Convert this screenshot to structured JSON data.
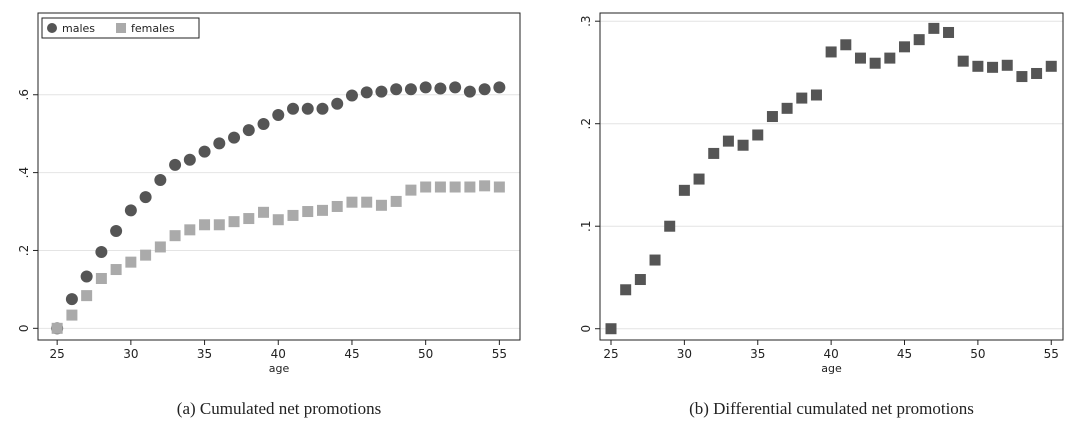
{
  "chart_data": [
    {
      "type": "scatter",
      "caption": "(a) Cumulated net promotions",
      "xlabel": "age",
      "x": [
        25,
        26,
        27,
        28,
        29,
        30,
        31,
        32,
        33,
        34,
        35,
        36,
        37,
        38,
        39,
        40,
        41,
        42,
        43,
        44,
        45,
        46,
        47,
        48,
        49,
        50,
        51,
        52,
        53,
        54,
        55
      ],
      "series": [
        {
          "name": "males",
          "color": "#555555",
          "marker": "circle",
          "values": [
            0,
            0.075,
            0.133,
            0.196,
            0.25,
            0.303,
            0.337,
            0.381,
            0.42,
            0.433,
            0.454,
            0.475,
            0.49,
            0.509,
            0.525,
            0.548,
            0.564,
            0.564,
            0.564,
            0.577,
            0.598,
            0.606,
            0.608,
            0.614,
            0.614,
            0.619,
            0.616,
            0.619,
            0.608,
            0.614,
            0.619
          ]
        },
        {
          "name": "females",
          "color": "#aaaaaa",
          "marker": "square",
          "values": [
            0,
            0.034,
            0.084,
            0.128,
            0.151,
            0.17,
            0.188,
            0.209,
            0.238,
            0.253,
            0.266,
            0.266,
            0.274,
            0.282,
            0.298,
            0.279,
            0.29,
            0.3,
            0.303,
            0.313,
            0.324,
            0.324,
            0.316,
            0.326,
            0.355,
            0.363,
            0.363,
            0.363,
            0.363,
            0.366,
            0.363
          ]
        }
      ],
      "xlim": [
        23.7,
        56.4
      ],
      "xticks": [
        25,
        30,
        35,
        40,
        45,
        50,
        55
      ],
      "ylim": [
        -0.03,
        0.81
      ],
      "yticks": [
        0,
        {
          "value": 0.2,
          "label": ".2"
        },
        {
          "value": 0.4,
          "label": ".4"
        },
        {
          "value": 0.6,
          "label": ".6"
        }
      ],
      "grid": true,
      "legend": "top-left"
    },
    {
      "type": "scatter",
      "caption": "(b) Differential cumulated net promotions",
      "xlabel": "age",
      "x": [
        25,
        26,
        27,
        28,
        29,
        30,
        31,
        32,
        33,
        34,
        35,
        36,
        37,
        38,
        39,
        40,
        41,
        42,
        43,
        44,
        45,
        46,
        47,
        48,
        49,
        50,
        51,
        52,
        53,
        54,
        55
      ],
      "series": [
        {
          "color": "#555555",
          "marker": "square",
          "values": [
            0,
            0.038,
            0.048,
            0.067,
            0.1,
            0.135,
            0.146,
            0.171,
            0.183,
            0.179,
            0.189,
            0.207,
            0.215,
            0.225,
            0.228,
            0.27,
            0.277,
            0.264,
            0.259,
            0.264,
            0.275,
            0.282,
            0.293,
            0.289,
            0.261,
            0.256,
            0.255,
            0.257,
            0.246,
            0.249,
            0.256
          ]
        }
      ],
      "xlim": [
        24.25,
        55.8
      ],
      "xticks": [
        25,
        30,
        35,
        40,
        45,
        50,
        55
      ],
      "ylim": [
        -0.011,
        0.308
      ],
      "yticks": [
        0,
        {
          "value": 0.1,
          "label": ".1"
        },
        {
          "value": 0.2,
          "label": ".2"
        },
        {
          "value": 0.3,
          "label": ".3"
        }
      ],
      "grid": true
    }
  ]
}
